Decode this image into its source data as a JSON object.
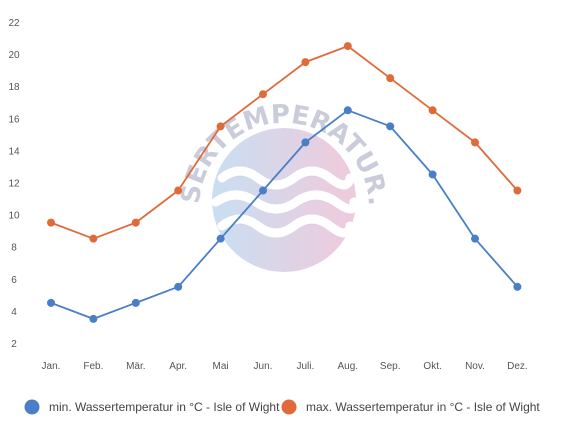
{
  "chart_data": {
    "type": "line",
    "categories": [
      "Jan.",
      "Feb.",
      "Mär.",
      "Apr.",
      "Mai",
      "Jun.",
      "Juli.",
      "Aug.",
      "Sep.",
      "Okt.",
      "Nov.",
      "Dez."
    ],
    "series": [
      {
        "name": "min. Wassertemperatur in °C - Isle of Wight",
        "color": "#4a7fc8",
        "values": [
          4.5,
          3.5,
          4.5,
          5.5,
          8.5,
          11.5,
          14.5,
          16.5,
          15.5,
          12.5,
          8.5,
          5.5
        ]
      },
      {
        "name": "max. Wassertemperatur in °C - Isle of Wight",
        "color": "#e06b3a",
        "values": [
          9.5,
          8.5,
          9.5,
          11.5,
          15.5,
          17.5,
          19.5,
          20.5,
          18.5,
          16.5,
          14.5,
          11.5
        ]
      }
    ],
    "yticks": [
      "2",
      "4",
      "6",
      "8",
      "10",
      "12",
      "14",
      "16",
      "18",
      "20",
      "22"
    ],
    "ylim": [
      2,
      22
    ],
    "grid": false,
    "legend": "bottom",
    "watermark": "WASSERTEMPERATUR.ORG"
  }
}
